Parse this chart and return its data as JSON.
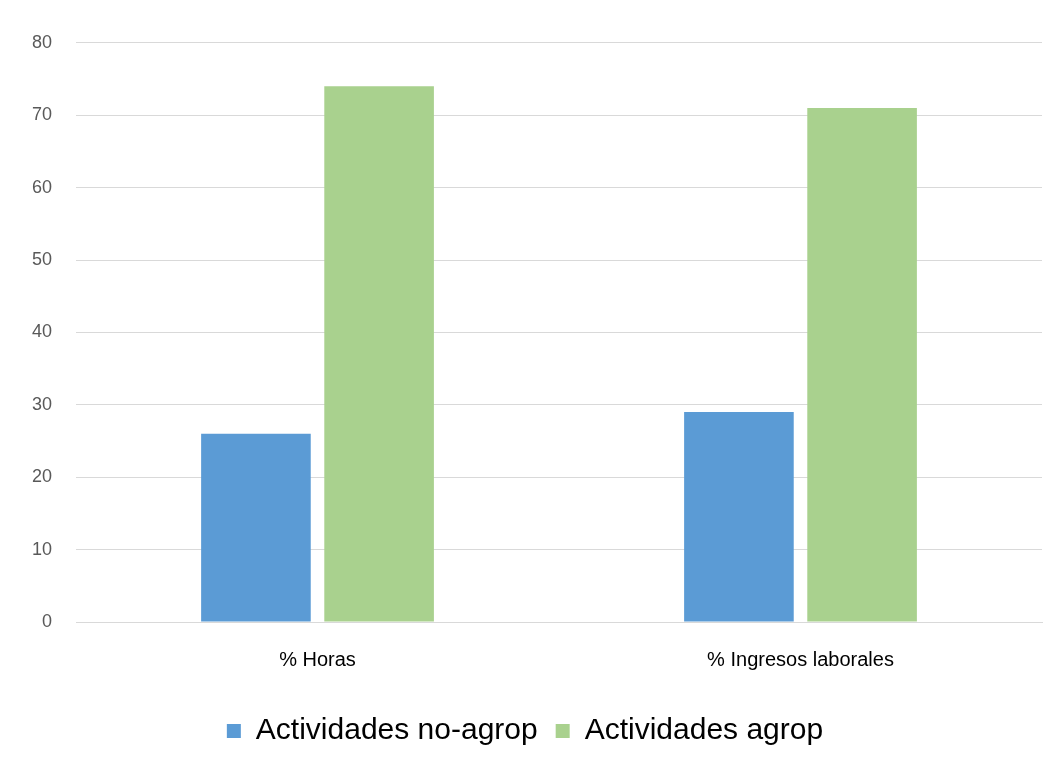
{
  "chart_data": {
    "type": "bar",
    "categories": [
      "% Horas",
      "% Ingresos laborales"
    ],
    "series": [
      {
        "name": "Actividades no-agrop",
        "color": "#5b9bd5",
        "values": [
          26,
          29
        ]
      },
      {
        "name": "Actividades agrop",
        "color": "#a9d18e",
        "values": [
          74,
          71
        ]
      }
    ],
    "ylim": [
      0,
      80
    ],
    "yticks": [
      0,
      10,
      20,
      30,
      40,
      50,
      60,
      70,
      80
    ],
    "grid": "y",
    "legend": "bottom"
  }
}
